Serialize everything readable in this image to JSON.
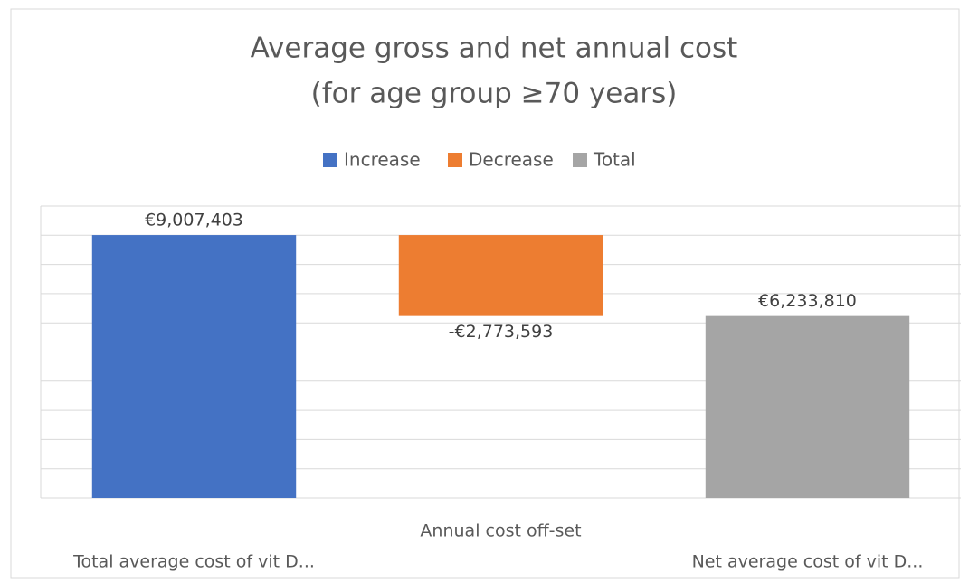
{
  "chart_data": {
    "type": "waterfall",
    "title": [
      "Average gross and net annual cost",
      "(for age group ≥70 years)"
    ],
    "categories": [
      "Total average cost of vit D...",
      "Annual cost off-set",
      "Net average cost of vit D..."
    ],
    "series": [
      {
        "name": "Increase",
        "color": "#4472c4",
        "values": [
          9007403,
          null,
          null
        ],
        "value_labels": [
          "€9,007,403",
          null,
          null
        ]
      },
      {
        "name": "Decrease",
        "color": "#ed7d31",
        "values": [
          null,
          -2773593,
          null
        ],
        "value_labels": [
          null,
          "-€2,773,593",
          null
        ]
      },
      {
        "name": "Total",
        "color": "#a5a5a5",
        "values": [
          null,
          null,
          6233810
        ],
        "value_labels": [
          null,
          null,
          "€6,233,810"
        ]
      }
    ],
    "ylim": [
      0,
      10000000
    ],
    "yticks": [
      0,
      1000000,
      2000000,
      3000000,
      4000000,
      5000000,
      6000000,
      7000000,
      8000000,
      9000000,
      10000000
    ],
    "ytick_labels": false,
    "grid": true,
    "legend": "top"
  }
}
